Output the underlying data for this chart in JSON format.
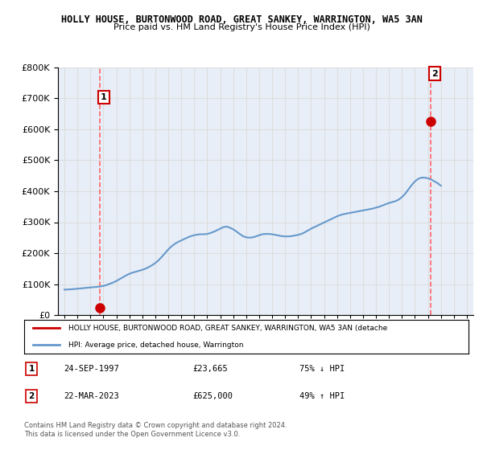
{
  "title": "HOLLY HOUSE, BURTONWOOD ROAD, GREAT SANKEY, WARRINGTON, WA5 3AN",
  "subtitle": "Price paid vs. HM Land Registry's House Price Index (HPI)",
  "sale1_date": 1997.73,
  "sale1_price": 23665,
  "sale1_label": "1",
  "sale1_text": "24-SEP-1997",
  "sale1_price_str": "£23,665",
  "sale1_hpi_str": "75% ↓ HPI",
  "sale2_date": 2023.22,
  "sale2_price": 625000,
  "sale2_label": "2",
  "sale2_text": "22-MAR-2023",
  "sale2_price_str": "£625,000",
  "sale2_hpi_str": "49% ↑ HPI",
  "ylim": [
    0,
    800000
  ],
  "xlim": [
    1994.5,
    2026.5
  ],
  "hpi_color": "#6699cc",
  "sale_color": "#cc0000",
  "vline_color": "#ff6666",
  "grid_color": "#dddddd",
  "bg_color": "#e8eef8",
  "legend_text1": "HOLLY HOUSE, BURTONWOOD ROAD, GREAT SANKEY, WARRINGTON, WA5 3AN (detache",
  "legend_text2": "HPI: Average price, detached house, Warrington",
  "footer": "Contains HM Land Registry data © Crown copyright and database right 2024.\nThis data is licensed under the Open Government Licence v3.0.",
  "hpi_data_x": [
    1995.0,
    1995.25,
    1995.5,
    1995.75,
    1996.0,
    1996.25,
    1996.5,
    1996.75,
    1997.0,
    1997.25,
    1997.5,
    1997.75,
    1998.0,
    1998.25,
    1998.5,
    1998.75,
    1999.0,
    1999.25,
    1999.5,
    1999.75,
    2000.0,
    2000.25,
    2000.5,
    2000.75,
    2001.0,
    2001.25,
    2001.5,
    2001.75,
    2002.0,
    2002.25,
    2002.5,
    2002.75,
    2003.0,
    2003.25,
    2003.5,
    2003.75,
    2004.0,
    2004.25,
    2004.5,
    2004.75,
    2005.0,
    2005.25,
    2005.5,
    2005.75,
    2006.0,
    2006.25,
    2006.5,
    2006.75,
    2007.0,
    2007.25,
    2007.5,
    2007.75,
    2008.0,
    2008.25,
    2008.5,
    2008.75,
    2009.0,
    2009.25,
    2009.5,
    2009.75,
    2010.0,
    2010.25,
    2010.5,
    2010.75,
    2011.0,
    2011.25,
    2011.5,
    2011.75,
    2012.0,
    2012.25,
    2012.5,
    2012.75,
    2013.0,
    2013.25,
    2013.5,
    2013.75,
    2014.0,
    2014.25,
    2014.5,
    2014.75,
    2015.0,
    2015.25,
    2015.5,
    2015.75,
    2016.0,
    2016.25,
    2016.5,
    2016.75,
    2017.0,
    2017.25,
    2017.5,
    2017.75,
    2018.0,
    2018.25,
    2018.5,
    2018.75,
    2019.0,
    2019.25,
    2019.5,
    2019.75,
    2020.0,
    2020.25,
    2020.5,
    2020.75,
    2021.0,
    2021.25,
    2021.5,
    2021.75,
    2022.0,
    2022.25,
    2022.5,
    2022.75,
    2023.0,
    2023.25,
    2023.5,
    2023.75,
    2024.0
  ],
  "hpi_data_y": [
    82000,
    82500,
    83000,
    84000,
    85000,
    86000,
    87000,
    88000,
    89000,
    90000,
    91000,
    92000,
    94000,
    97000,
    101000,
    105000,
    110000,
    116000,
    122000,
    128000,
    133000,
    137000,
    140000,
    143000,
    146000,
    150000,
    155000,
    161000,
    168000,
    177000,
    188000,
    200000,
    212000,
    222000,
    230000,
    236000,
    241000,
    246000,
    251000,
    255000,
    258000,
    260000,
    261000,
    261000,
    262000,
    265000,
    269000,
    274000,
    279000,
    284000,
    286000,
    282000,
    277000,
    270000,
    262000,
    255000,
    251000,
    250000,
    251000,
    254000,
    258000,
    261000,
    262000,
    262000,
    261000,
    259000,
    257000,
    255000,
    254000,
    254000,
    255000,
    257000,
    259000,
    262000,
    267000,
    273000,
    279000,
    284000,
    289000,
    294000,
    299000,
    304000,
    309000,
    314000,
    319000,
    323000,
    326000,
    328000,
    330000,
    332000,
    334000,
    336000,
    338000,
    340000,
    342000,
    344000,
    347000,
    350000,
    354000,
    358000,
    362000,
    365000,
    368000,
    373000,
    381000,
    392000,
    406000,
    420000,
    432000,
    440000,
    444000,
    444000,
    442000,
    438000,
    432000,
    426000,
    418000
  ]
}
